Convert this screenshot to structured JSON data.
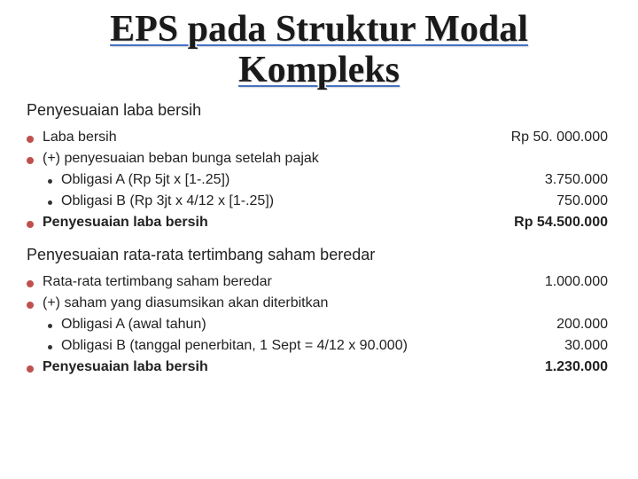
{
  "title_line1": "EPS pada Struktur Modal",
  "title_line2": "Kompleks",
  "section1": {
    "heading": "Penyesuaian laba bersih",
    "rows": [
      {
        "bullet": "main",
        "label": "Laba bersih",
        "value": "Rp 50. 000.000",
        "bold": false
      },
      {
        "bullet": "main",
        "label": "(+) penyesuaian beban bunga setelah pajak",
        "value": "",
        "bold": false
      },
      {
        "bullet": "sub",
        "label": "Obligasi A (Rp 5jt x [1-.25])",
        "value": "3.750.000",
        "bold": false
      },
      {
        "bullet": "sub",
        "label": "Obligasi B (Rp 3jt x 4/12 x [1-.25])",
        "value": "750.000",
        "bold": false
      },
      {
        "bullet": "main",
        "label": "Penyesuaian laba bersih",
        "value": "Rp 54.500.000",
        "bold": true
      }
    ]
  },
  "section2": {
    "heading": "Penyesuaian rata-rata tertimbang saham beredar",
    "rows": [
      {
        "bullet": "main",
        "label": "Rata-rata tertimbang saham beredar",
        "value": "1.000.000",
        "bold": false
      },
      {
        "bullet": "main",
        "label": "(+) saham yang diasumsikan akan diterbitkan",
        "value": "",
        "bold": false
      },
      {
        "bullet": "sub",
        "label": "Obligasi A (awal tahun)",
        "value": "200.000",
        "bold": false
      },
      {
        "bullet": "sub",
        "label": "Obligasi B (tanggal penerbitan, 1 Sept = 4/12 x 90.000)",
        "value": "30.000",
        "bold": false
      },
      {
        "bullet": "main",
        "label": "Penyesuaian laba bersih",
        "value": "1.230.000",
        "bold": true
      }
    ]
  },
  "colors": {
    "bullet_main": "#c0504d",
    "bullet_sub": "#333333",
    "underline": "#4472c4",
    "text": "#222222",
    "background": "#ffffff"
  }
}
